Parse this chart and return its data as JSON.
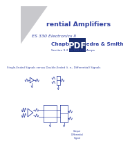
{
  "bg_color": "#ffffff",
  "title": "rential Amplifiers",
  "subtitle1": "ES 330 Electronics II",
  "subtitle2": "Chapter 8  Sedra & Smith",
  "subtitle3": "Section 9.2 on Diff Diff Amps",
  "body_label": "Single-Ended Signals versus Double-Ended (i. e., Differential) Signals",
  "text_color": "#3040a0",
  "pdf_label": "PDF",
  "pdf_box_color": "#1a2e6e",
  "triangle_fill": "#c8c8cc"
}
